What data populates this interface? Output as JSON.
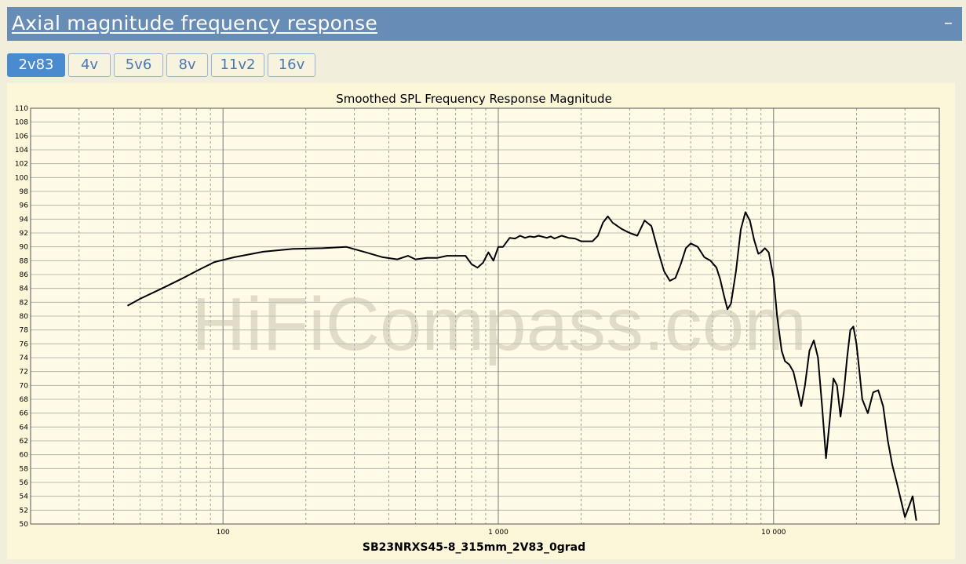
{
  "section": {
    "title": "Axial magnitude frequency response",
    "collapse_symbol": "–"
  },
  "tabs": [
    {
      "label": "2v83",
      "active": true
    },
    {
      "label": "4v",
      "active": false
    },
    {
      "label": "5v6",
      "active": false
    },
    {
      "label": "8v",
      "active": false
    },
    {
      "label": "11v2",
      "active": false
    },
    {
      "label": "16v",
      "active": false
    }
  ],
  "watermark": "HiFiCompass.com",
  "colors": {
    "header_bg": "#678cb5",
    "tab_active_bg": "#4a8bd0",
    "plot_bg": "#fffbe6",
    "curve": "#000000"
  },
  "chart_data": {
    "type": "line",
    "title": "Smoothed SPL Frequency Response Magnitude",
    "xlabel": "SB23NRXS45-8_315mm_2V83_0grad",
    "ylabel": "",
    "xscale": "log",
    "xlim": [
      20,
      40000
    ],
    "ylim": [
      50,
      110
    ],
    "x_tick_labels": [
      {
        "value": 100,
        "label": "100"
      },
      {
        "value": 1000,
        "label": "1 000"
      },
      {
        "value": 10000,
        "label": "10 000"
      }
    ],
    "y_ticks": [
      50,
      52,
      54,
      56,
      58,
      60,
      62,
      64,
      66,
      68,
      70,
      72,
      74,
      76,
      78,
      80,
      82,
      84,
      86,
      88,
      90,
      92,
      94,
      96,
      98,
      100,
      102,
      104,
      106,
      108,
      110
    ],
    "grid": true,
    "series": [
      {
        "x": [
          45,
          50,
          60,
          70,
          80,
          93,
          110,
          140,
          180,
          230,
          280,
          330,
          380,
          430,
          470,
          500,
          550,
          600,
          650,
          700,
          760,
          800,
          840,
          880,
          920,
          960,
          1000,
          1040,
          1100,
          1150,
          1200,
          1250,
          1300,
          1350,
          1400,
          1500,
          1550,
          1600,
          1700,
          1800,
          1900,
          2000,
          2100,
          2200,
          2300,
          2400,
          2500,
          2600,
          2800,
          3000,
          3200,
          3400,
          3600,
          3800,
          4000,
          4200,
          4400,
          4600,
          4800,
          5000,
          5300,
          5600,
          5900,
          6200,
          6400,
          6600,
          6800,
          7000,
          7300,
          7600,
          7900,
          8200,
          8500,
          8800,
          9000,
          9300,
          9600,
          10000,
          10300,
          10700,
          11000,
          11400,
          11800,
          12200,
          12600,
          13000,
          13500,
          14000,
          14500,
          15000,
          15500,
          16000,
          16500,
          17000,
          17500,
          18000,
          18500,
          19000,
          19500,
          20000,
          20500,
          21000,
          22000,
          23000,
          24000,
          25000,
          26000,
          27000,
          28000,
          29000,
          30000,
          31000,
          32000,
          33000
        ],
        "y": [
          81.5,
          82.5,
          84,
          85.3,
          86.5,
          87.8,
          88.5,
          89.3,
          89.7,
          89.8,
          90,
          89.2,
          88.5,
          88.2,
          88.7,
          88.2,
          88.4,
          88.4,
          88.7,
          88.7,
          88.7,
          87.5,
          87,
          87.7,
          89.2,
          88,
          90,
          90,
          91.3,
          91.2,
          91.6,
          91.3,
          91.5,
          91.4,
          91.6,
          91.3,
          91.5,
          91.2,
          91.6,
          91.3,
          91.2,
          90.8,
          90.8,
          90.8,
          91.6,
          93.5,
          94.4,
          93.5,
          92.6,
          92,
          91.6,
          93.8,
          93,
          89.5,
          86.5,
          85.1,
          85.5,
          87.5,
          89.8,
          90.5,
          90,
          88.5,
          88,
          87,
          85.3,
          83,
          81,
          81.8,
          86.5,
          92.5,
          95,
          93.8,
          91,
          89,
          89.2,
          89.8,
          89.2,
          85.5,
          80,
          75,
          73.5,
          73,
          72,
          69.5,
          67,
          70,
          75,
          76.5,
          74,
          67,
          59.5,
          65,
          71,
          70,
          65.5,
          69,
          74,
          78,
          78.5,
          76,
          72,
          68,
          66,
          69,
          69.3,
          67,
          62,
          58.5,
          56,
          53.5,
          51,
          52.5,
          54,
          50.5
        ]
      }
    ]
  }
}
